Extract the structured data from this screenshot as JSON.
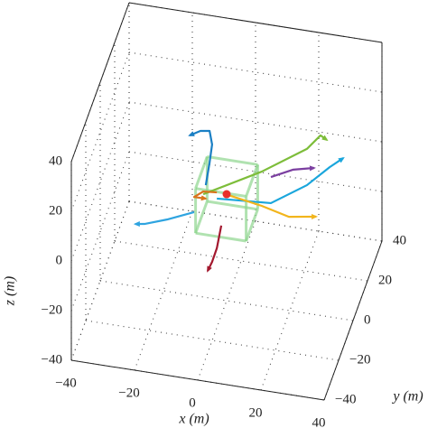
{
  "chart_data": {
    "type": "line3d",
    "xlabel": "x (m)",
    "ylabel": "y (m)",
    "zlabel": "z (m)",
    "xlim": [
      -40,
      40
    ],
    "ylim": [
      -40,
      40
    ],
    "zlim": [
      -40,
      40
    ],
    "xticks": [
      {
        "value": -40,
        "label": "−40"
      },
      {
        "value": -20,
        "label": "−20"
      },
      0,
      20,
      40
    ],
    "yticks": [
      {
        "value": -40,
        "label": "−40"
      },
      {
        "value": -20,
        "label": "−20"
      },
      0,
      20,
      40
    ],
    "zticks": [
      {
        "value": -40,
        "label": "−40"
      },
      {
        "value": -20,
        "label": "−20"
      },
      0,
      20,
      40
    ],
    "grid": true,
    "region": {
      "color": "#8fd68f",
      "x": [
        -8,
        8
      ],
      "y": [
        -8,
        8
      ],
      "z": [
        -8,
        10
      ]
    },
    "target": {
      "color": "#e8302a",
      "x": 0,
      "y": 0,
      "z": 2.9
    },
    "series": [
      {
        "color": "#1a7fc4",
        "x": [
          -6.6,
          -5.4,
          -4.6,
          -5.4,
          -8.3,
          -11.7
        ],
        "y": [
          0,
          0,
          0,
          0,
          0,
          0
        ],
        "z": [
          5.2,
          14.5,
          22,
          27.3,
          26.7,
          24.2
        ]
      },
      {
        "color": "#7dbd3a",
        "x": [
          -7.4,
          11.1,
          25.4,
          29.7,
          31.7
        ],
        "y": [
          0,
          0,
          0,
          0,
          0
        ],
        "z": [
          1.4,
          14.2,
          26.2,
          32.5,
          31.1
        ]
      },
      {
        "color": "#7b3fa0",
        "x": [
          14,
          21.1,
          27.7
        ],
        "y": [
          0,
          0,
          0
        ],
        "z": [
          12.6,
          17,
          19
        ]
      },
      {
        "color": "#1aa6dc",
        "x": [
          -3.1,
          14,
          25.4,
          32.6,
          36.9
        ],
        "y": [
          0,
          0,
          0,
          0,
          0
        ],
        "z": [
          0.5,
          2.1,
          11.6,
          20.3,
          24.8
        ]
      },
      {
        "color": "#f2b51c",
        "x": [
          -0.3,
          11.1,
          19.7,
          28.3
        ],
        "y": [
          0,
          0,
          0,
          0
        ],
        "z": [
          2.8,
          0.4,
          -2.3,
          -0.5
        ]
      },
      {
        "color": "#2fa4e0",
        "x": [
          -10.3,
          -18.9,
          -26,
          -28.9
        ],
        "y": [
          0,
          0,
          0,
          0
        ],
        "z": [
          -6.4,
          -11.1,
          -14.3,
          -14.9
        ]
      },
      {
        "color": "#a3182e",
        "x": [
          -1.7,
          -3.1,
          -4.6,
          -6
        ],
        "y": [
          0,
          0,
          0,
          0
        ],
        "z": [
          -10.1,
          -19.5,
          -25.3,
          -29.2
        ]
      },
      {
        "color": "#d9741c",
        "x": [
          -3.1,
          -7.4,
          -10.3,
          -6.6
        ],
        "y": [
          0,
          0,
          0,
          0
        ],
        "z": [
          3,
          2.5,
          -0.3,
          -0.2
        ]
      }
    ]
  }
}
